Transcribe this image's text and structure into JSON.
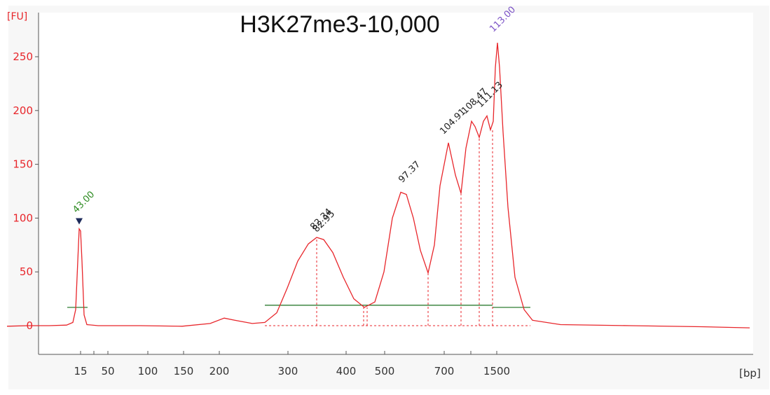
{
  "chart_data": {
    "type": "line",
    "title": "H3K27me3-10,000",
    "xlabel": "",
    "ylabel": "",
    "y_unit": "[FU]",
    "x_unit": "[bp]",
    "ylim": [
      -30,
      275
    ],
    "yticks": [
      0,
      50,
      100,
      150,
      200,
      250
    ],
    "xticks": [
      "15",
      "50",
      "100",
      "150",
      "200",
      "300",
      "400",
      "500",
      "700",
      "1500"
    ],
    "grid": false,
    "colors": {
      "trace": "#e8262b",
      "baseline": "#2e7d32",
      "marker_label": "#2e8b22",
      "upper_marker_label": "#7b52c6",
      "peak_label": "#222222",
      "marker_triangle": "#1c2a5a"
    },
    "series": [
      {
        "values": [
          [
            10,
            -0.5
          ],
          [
            40,
            0
          ],
          [
            70,
            0
          ],
          [
            95,
            0.5
          ],
          [
            104,
            3
          ],
          [
            108,
            15
          ],
          [
            111,
            60
          ],
          [
            113,
            90
          ],
          [
            115,
            88
          ],
          [
            117,
            60
          ],
          [
            120,
            10
          ],
          [
            124,
            1
          ],
          [
            140,
            0
          ],
          [
            200,
            0
          ],
          [
            260,
            -0.5
          ],
          [
            300,
            2
          ],
          [
            320,
            7
          ],
          [
            335,
            5
          ],
          [
            360,
            2
          ],
          [
            378,
            3
          ],
          [
            395,
            12
          ],
          [
            410,
            35
          ],
          [
            425,
            60
          ],
          [
            440,
            76
          ],
          [
            452,
            82
          ],
          [
            462,
            80
          ],
          [
            475,
            68
          ],
          [
            490,
            45
          ],
          [
            505,
            25
          ],
          [
            520,
            17
          ],
          [
            535,
            22
          ],
          [
            548,
            50
          ],
          [
            560,
            100
          ],
          [
            572,
            124
          ],
          [
            580,
            122
          ],
          [
            590,
            100
          ],
          [
            600,
            70
          ],
          [
            611,
            49
          ],
          [
            620,
            75
          ],
          [
            628,
            130
          ],
          [
            640,
            170
          ],
          [
            650,
            140
          ],
          [
            658,
            123
          ],
          [
            665,
            165
          ],
          [
            673,
            190
          ],
          [
            678,
            185
          ],
          [
            684,
            175
          ],
          [
            690,
            190
          ],
          [
            695,
            195
          ],
          [
            700,
            182
          ],
          [
            704,
            190
          ],
          [
            707,
            240
          ],
          [
            710,
            263
          ],
          [
            713,
            240
          ],
          [
            718,
            180
          ],
          [
            725,
            110
          ],
          [
            735,
            45
          ],
          [
            748,
            15
          ],
          [
            760,
            5
          ],
          [
            800,
            1
          ],
          [
            900,
            0
          ],
          [
            1000,
            -1
          ],
          [
            1070,
            -2
          ]
        ]
      }
    ],
    "peak_labels": [
      {
        "text": "43.00",
        "x": 113,
        "y": 98,
        "kind": "marker"
      },
      {
        "text": "82.34",
        "x": 452,
        "y": 82,
        "kind": "peak"
      },
      {
        "text": "82.95",
        "x": 456,
        "y": 80,
        "kind": "peak"
      },
      {
        "text": "97.37",
        "x": 578,
        "y": 126,
        "kind": "peak"
      },
      {
        "text": "104.91",
        "x": 637,
        "y": 171,
        "kind": "peak"
      },
      {
        "text": "108.47",
        "x": 668,
        "y": 190,
        "kind": "peak"
      },
      {
        "text": "111.13",
        "x": 690,
        "y": 196,
        "kind": "peak"
      },
      {
        "text": "113.00",
        "x": 708,
        "y": 266,
        "kind": "upper_marker"
      }
    ],
    "dashed_dividers": [
      {
        "x": 452,
        "y": 82
      },
      {
        "x": 519,
        "y": 17
      },
      {
        "x": 524,
        "y": 17
      },
      {
        "x": 611,
        "y": 49
      },
      {
        "x": 658,
        "y": 123
      },
      {
        "x": 684,
        "y": 175
      },
      {
        "x": 703,
        "y": 182
      }
    ],
    "baselines": [
      {
        "x1": 96,
        "x2": 125,
        "y": 17
      },
      {
        "x1": 378,
        "x2": 703,
        "y": 19
      },
      {
        "x1": 703,
        "x2": 757,
        "y": 17
      }
    ],
    "dashed_floor": {
      "x1": 378,
      "x2": 757,
      "y": 0
    }
  }
}
